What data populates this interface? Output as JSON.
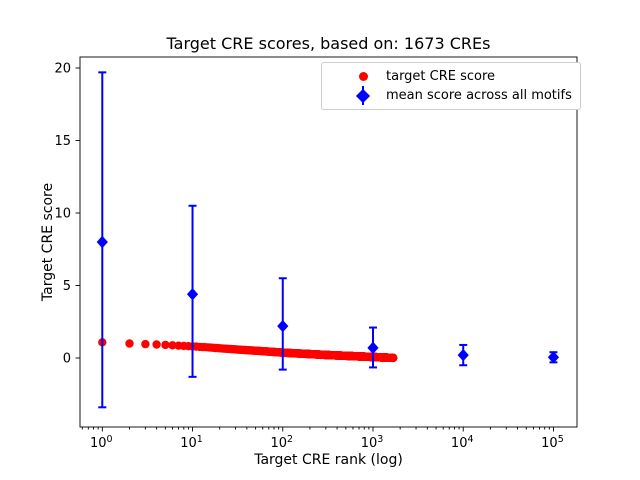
{
  "chart_data": {
    "type": "scatter",
    "title": "Target CRE scores, based on: 1673 CREs",
    "xlabel": "Target CRE rank (log)",
    "ylabel": "Target CRE score",
    "x_scale": "log",
    "x_tick_base": "10",
    "x_tick_exponents": [
      0,
      1,
      2,
      3,
      4,
      5
    ],
    "y_ticks": [
      0,
      5,
      10,
      15,
      20
    ],
    "x_range": [
      0.57,
      190000
    ],
    "y_range": [
      -4.8,
      20.9
    ],
    "grid": false,
    "legend_position": "upper right",
    "series": [
      {
        "name": "target CRE score",
        "color": "#ff0000",
        "marker": "circle",
        "n_points": 1673,
        "x_description": "integer ranks 1 to 1673",
        "control_points": {
          "rank": [
            1,
            2,
            3,
            4,
            5,
            7,
            10,
            15,
            20,
            30,
            50,
            70,
            100,
            150,
            200,
            300,
            500,
            700,
            1000,
            1300,
            1673
          ],
          "score": [
            1.08,
            1.0,
            0.96,
            0.93,
            0.9,
            0.85,
            0.8,
            0.73,
            0.67,
            0.59,
            0.5,
            0.44,
            0.37,
            0.31,
            0.27,
            0.21,
            0.15,
            0.11,
            0.07,
            0.035,
            0.01
          ]
        }
      },
      {
        "name": "mean score across all motifs",
        "color": "#0000ff",
        "marker": "diamond",
        "x": [
          1,
          10,
          100,
          1000,
          10000,
          100000
        ],
        "y": [
          8.0,
          4.4,
          2.2,
          0.7,
          0.2,
          0.05
        ],
        "err_low": [
          -3.4,
          -1.3,
          -0.8,
          -0.65,
          -0.5,
          -0.3
        ],
        "err_high": [
          19.7,
          10.5,
          5.5,
          2.1,
          0.9,
          0.4
        ]
      }
    ]
  },
  "legend": {
    "items": [
      {
        "label": "target CRE score",
        "color": "#ff0000",
        "marker": "circle"
      },
      {
        "label": "mean score across all motifs",
        "color": "#0000ff",
        "marker": "diamond-errorbar"
      }
    ]
  }
}
